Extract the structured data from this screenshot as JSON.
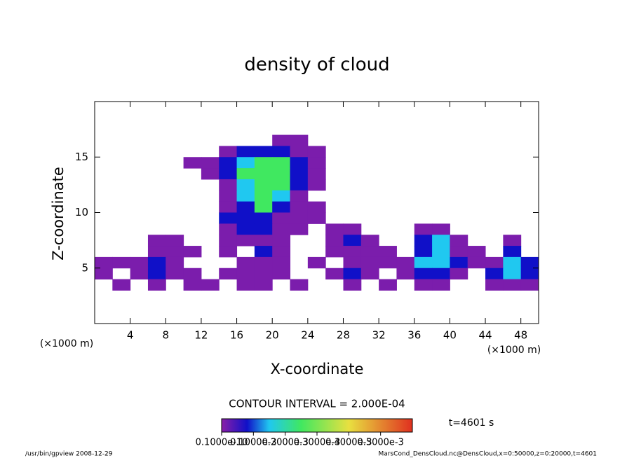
{
  "chart_data": {
    "type": "contour",
    "title": "density of cloud",
    "x_label": "X-coordinate",
    "y_label": "Z-coordinate",
    "x_unit": "(×1000 m)",
    "y_unit": "(×1000 m)",
    "contour_interval": "CONTOUR INTERVAL = 2.000E-04",
    "time_label": "t=4601 s",
    "footer_left": "/usr/bin/gpview  2008-12-29",
    "footer_right": "MarsCond_DensCloud.nc@DensCloud,x=0:50000,z=0:20000,t=4601",
    "xlim": [
      0,
      50
    ],
    "ylim": [
      0,
      20
    ],
    "xticks": [
      4,
      8,
      12,
      16,
      20,
      24,
      28,
      32,
      36,
      40,
      44,
      48
    ],
    "yticks": [
      5,
      10,
      15
    ],
    "x": [
      1,
      3,
      5,
      7,
      9,
      11,
      13,
      15,
      17,
      19,
      21,
      23,
      25,
      27,
      29,
      31,
      33,
      35,
      37,
      39,
      41,
      43,
      45,
      47,
      49
    ],
    "z": [
      16.5,
      15.5,
      14.5,
      13.5,
      12.5,
      11.5,
      10.5,
      9.5,
      8.5,
      7.5,
      6.5,
      5.5,
      4.5,
      3.5
    ],
    "values": [
      [
        0,
        0,
        0,
        0,
        0,
        0,
        0,
        0,
        0,
        0,
        1e-05,
        1e-05,
        0,
        0,
        0,
        0,
        0,
        0,
        0,
        0,
        0,
        0,
        0,
        0,
        0
      ],
      [
        0,
        0,
        0,
        0,
        0,
        0,
        0,
        1e-05,
        8e-05,
        8e-05,
        8e-05,
        1e-05,
        1e-05,
        0,
        0,
        0,
        0,
        0,
        0,
        0,
        0,
        0,
        0,
        0,
        0
      ],
      [
        0,
        0,
        0,
        0,
        0,
        1e-05,
        1e-05,
        8e-05,
        0.00015,
        0.00025,
        0.00025,
        8e-05,
        1e-05,
        0,
        0,
        0,
        0,
        0,
        0,
        0,
        0,
        0,
        0,
        0,
        0
      ],
      [
        0,
        0,
        0,
        0,
        0,
        0,
        1e-05,
        8e-05,
        0.00025,
        0.00025,
        0.00025,
        8e-05,
        1e-05,
        0,
        0,
        0,
        0,
        0,
        0,
        0,
        0,
        0,
        0,
        0,
        0
      ],
      [
        0,
        0,
        0,
        0,
        0,
        0,
        0,
        1e-05,
        0.00015,
        0.00025,
        0.00025,
        8e-05,
        1e-05,
        0,
        0,
        0,
        0,
        0,
        0,
        0,
        0,
        0,
        0,
        0,
        0
      ],
      [
        0,
        0,
        0,
        0,
        0,
        0,
        0,
        1e-05,
        0.00015,
        0.00025,
        0.00015,
        1e-05,
        0,
        0,
        0,
        0,
        0,
        0,
        0,
        0,
        0,
        0,
        0,
        0,
        0
      ],
      [
        0,
        0,
        0,
        0,
        0,
        0,
        0,
        1e-05,
        8e-05,
        0.00025,
        8e-05,
        1e-05,
        1e-05,
        0,
        0,
        0,
        0,
        0,
        0,
        0,
        0,
        0,
        0,
        0,
        0
      ],
      [
        0,
        0,
        0,
        0,
        0,
        0,
        0,
        8e-05,
        8e-05,
        8e-05,
        1e-05,
        1e-05,
        1e-05,
        0,
        0,
        0,
        0,
        0,
        0,
        0,
        0,
        0,
        0,
        0,
        0
      ],
      [
        0,
        0,
        0,
        0,
        0,
        0,
        0,
        1e-05,
        8e-05,
        8e-05,
        1e-05,
        1e-05,
        0,
        1e-05,
        1e-05,
        0,
        0,
        0,
        1e-05,
        1e-05,
        0,
        0,
        0,
        0,
        0
      ],
      [
        0,
        0,
        0,
        1e-05,
        1e-05,
        0,
        0,
        1e-05,
        1e-05,
        1e-05,
        1e-05,
        0,
        0,
        1e-05,
        8e-05,
        1e-05,
        0,
        0,
        8e-05,
        0.00015,
        1e-05,
        0,
        0,
        1e-05,
        0
      ],
      [
        0,
        0,
        0,
        1e-05,
        1e-05,
        1e-05,
        0,
        1e-05,
        0,
        8e-05,
        1e-05,
        0,
        0,
        1e-05,
        1e-05,
        1e-05,
        1e-05,
        0,
        8e-05,
        0.00015,
        1e-05,
        1e-05,
        0,
        8e-05,
        0
      ],
      [
        1e-05,
        1e-05,
        1e-05,
        8e-05,
        1e-05,
        0,
        0,
        0,
        1e-05,
        1e-05,
        1e-05,
        0,
        1e-05,
        0,
        1e-05,
        1e-05,
        1e-05,
        1e-05,
        0.00015,
        0.00015,
        8e-05,
        1e-05,
        1e-05,
        0.00015,
        8e-05
      ],
      [
        1e-05,
        0,
        1e-05,
        8e-05,
        1e-05,
        1e-05,
        0,
        1e-05,
        1e-05,
        1e-05,
        1e-05,
        0,
        0,
        1e-05,
        8e-05,
        1e-05,
        0,
        1e-05,
        8e-05,
        8e-05,
        1e-05,
        0,
        8e-05,
        0.00015,
        8e-05
      ],
      [
        0,
        1e-05,
        0,
        1e-05,
        0,
        1e-05,
        1e-05,
        0,
        1e-05,
        1e-05,
        0,
        1e-05,
        0,
        0,
        1e-05,
        0,
        1e-05,
        0,
        1e-05,
        1e-05,
        0,
        0,
        1e-05,
        1e-05,
        1e-05
      ]
    ],
    "colormap": [
      {
        "value": 0,
        "color": "#8a1fa8"
      },
      {
        "value": 8e-05,
        "color": "#1010c8"
      },
      {
        "value": 0.00015,
        "color": "#20c8f0"
      },
      {
        "value": 0.00025,
        "color": "#40e860"
      },
      {
        "value": 0.0004,
        "color": "#e8e040"
      },
      {
        "value": 0.0006,
        "color": "#e03020"
      }
    ],
    "colorbar_lim": [
      0,
      0.0006
    ],
    "colorbar_ticks": [
      {
        "value": 1e-11,
        "label": "0.1000e-10"
      },
      {
        "value": 0.0001,
        "label": "0.1000e-3"
      },
      {
        "value": 0.0002,
        "label": "0.2000e-3"
      },
      {
        "value": 0.0003,
        "label": "0.3000e-3"
      },
      {
        "value": 0.0004,
        "label": "0.4000e-3"
      },
      {
        "value": 0.0005,
        "label": "0.5000e-3"
      }
    ]
  }
}
